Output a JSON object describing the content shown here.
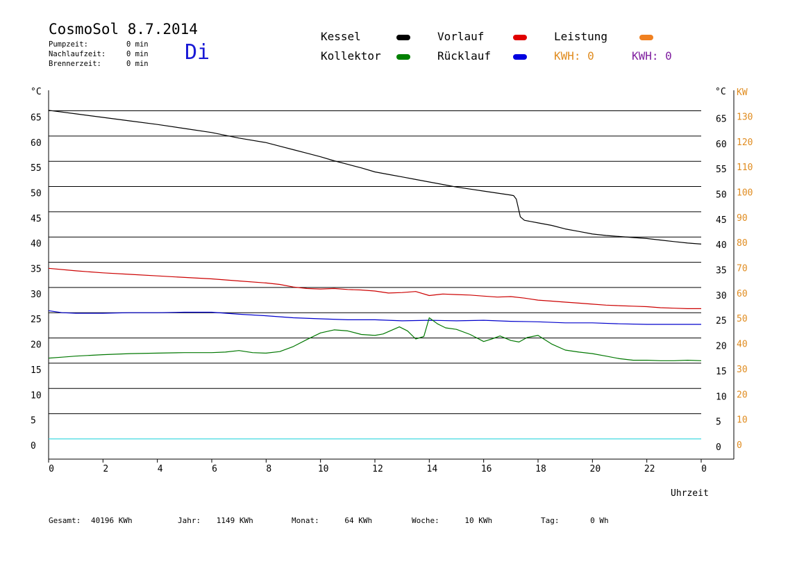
{
  "header": {
    "title": "CosmoSol 8.7.2014",
    "day": "Di",
    "stats": [
      {
        "label": "Pumpzeit:",
        "value": "0 min"
      },
      {
        "label": "Nachlaufzeit:",
        "value": "0 min"
      },
      {
        "label": "Brennerzeit:",
        "value": "0 min"
      }
    ]
  },
  "legend": {
    "kessel": {
      "label": "Kessel",
      "color": "#000000"
    },
    "kollektor": {
      "label": "Kollektor",
      "color": "#008000"
    },
    "vorlauf": {
      "label": "Vorlauf",
      "color": "#e00000"
    },
    "ruecklauf": {
      "label": "Rücklauf",
      "color": "#0000e0"
    },
    "leistung": {
      "label": "Leistung",
      "color": "#f08020"
    },
    "kwh_orange": "KWH: 0",
    "kwh_purple": "KWH: 0",
    "orange_color": "#e08c20",
    "purple_color": "#8020a0"
  },
  "footer": {
    "gesamt": {
      "label": "Gesamt:",
      "value": "40196 KWh"
    },
    "jahr": {
      "label": "Jahr:",
      "value": "1149 KWh"
    },
    "monat": {
      "label": "Monat:",
      "value": "64 KWh"
    },
    "woche": {
      "label": "Woche:",
      "value": "10 KWh"
    },
    "tag": {
      "label": "Tag:",
      "value": "0 Wh"
    }
  },
  "chart_data": {
    "type": "line",
    "xlabel": "Uhrzeit",
    "ylabel_left": "°C",
    "ylabel_right_c": "°C",
    "ylabel_right_kw": "KW",
    "xlim": [
      0,
      24
    ],
    "ylim": [
      -4,
      67
    ],
    "x_ticks": [
      "0",
      "2",
      "4",
      "6",
      "8",
      "10",
      "12",
      "14",
      "16",
      "18",
      "20",
      "22",
      "0"
    ],
    "y_ticks": [
      0,
      5,
      10,
      15,
      20,
      25,
      30,
      35,
      40,
      45,
      50,
      55,
      60,
      65
    ],
    "y2_ticks": [
      "0",
      "10",
      "20",
      "30",
      "40",
      "50",
      "60",
      "70",
      "80",
      "90",
      "100",
      "110",
      "120",
      "130"
    ],
    "grid": true,
    "series": [
      {
        "name": "Kessel",
        "color": "#000000",
        "x": [
          0,
          1,
          2,
          3,
          4,
          5,
          6,
          7,
          8,
          8.5,
          9,
          9.5,
          10,
          10.5,
          11,
          11.5,
          12,
          12.5,
          13,
          13.5,
          14,
          14.5,
          15,
          15.5,
          16,
          16.5,
          17,
          17.1,
          17.2,
          17.35,
          17.5,
          18,
          18.5,
          19,
          19.5,
          20,
          20.5,
          21,
          21.5,
          22,
          22.5,
          23,
          23.5,
          24
        ],
        "y": [
          65.1,
          64.4,
          63.7,
          63.0,
          62.3,
          61.5,
          60.7,
          59.6,
          58.7,
          58.0,
          57.3,
          56.6,
          55.9,
          55.1,
          54.4,
          53.7,
          52.9,
          52.4,
          51.9,
          51.4,
          50.9,
          50.4,
          49.9,
          49.5,
          49.1,
          48.7,
          48.3,
          48.2,
          47.5,
          44.0,
          43.3,
          42.8,
          42.3,
          41.6,
          41.1,
          40.6,
          40.3,
          40.1,
          39.9,
          39.7,
          39.4,
          39.1,
          38.8,
          38.6
        ]
      },
      {
        "name": "Vorlauf",
        "color": "#cc0000",
        "x": [
          0,
          1,
          2,
          3,
          4,
          5,
          6,
          7,
          8,
          8.5,
          9,
          9.5,
          10,
          10.5,
          11,
          11.5,
          12,
          12.5,
          13,
          13.5,
          14,
          14.5,
          15,
          15.5,
          16,
          16.5,
          17,
          17.5,
          18,
          18.5,
          19,
          19.5,
          20,
          20.5,
          21,
          21.5,
          22,
          22.5,
          23,
          23.5,
          24
        ],
        "y": [
          33.8,
          33.3,
          32.9,
          32.6,
          32.3,
          32.0,
          31.7,
          31.3,
          30.9,
          30.6,
          30.1,
          29.8,
          29.7,
          29.8,
          29.6,
          29.5,
          29.3,
          28.9,
          29.0,
          29.2,
          28.4,
          28.7,
          28.6,
          28.5,
          28.3,
          28.1,
          28.2,
          27.9,
          27.5,
          27.3,
          27.1,
          26.9,
          26.7,
          26.5,
          26.4,
          26.3,
          26.2,
          26.0,
          25.9,
          25.8,
          25.8
        ]
      },
      {
        "name": "Rücklauf",
        "color": "#0000cc",
        "x": [
          0,
          0.5,
          1,
          2,
          3,
          4,
          5,
          6,
          7,
          8,
          9,
          10,
          11,
          12,
          13,
          14,
          15,
          16,
          17,
          18,
          19,
          20,
          21,
          22,
          23,
          24
        ],
        "y": [
          25.4,
          25.0,
          24.9,
          24.9,
          25.0,
          25.0,
          25.1,
          25.1,
          24.7,
          24.4,
          24.0,
          23.8,
          23.6,
          23.6,
          23.4,
          23.5,
          23.4,
          23.5,
          23.3,
          23.2,
          23.0,
          23.0,
          22.8,
          22.7,
          22.7,
          22.7
        ]
      },
      {
        "name": "Kollektor",
        "color": "#007700",
        "x": [
          0,
          0.5,
          1,
          2,
          3,
          4,
          5,
          6,
          6.5,
          7,
          7.5,
          8,
          8.5,
          9,
          9.5,
          10,
          10.5,
          11,
          11.5,
          12,
          12.3,
          12.6,
          12.9,
          13.2,
          13.5,
          13.8,
          14.0,
          14.3,
          14.6,
          15,
          15.5,
          16,
          16.3,
          16.6,
          17,
          17.3,
          17.6,
          18,
          18.5,
          19,
          19.5,
          20,
          20.5,
          21,
          21.5,
          22,
          22.5,
          23,
          23.5,
          24
        ],
        "y": [
          16.0,
          16.2,
          16.4,
          16.7,
          16.9,
          17.0,
          17.1,
          17.1,
          17.2,
          17.5,
          17.1,
          17.0,
          17.3,
          18.3,
          19.7,
          21.0,
          21.6,
          21.4,
          20.7,
          20.5,
          20.8,
          21.5,
          22.2,
          21.4,
          19.8,
          20.3,
          24.0,
          22.8,
          22.0,
          21.7,
          20.7,
          19.3,
          19.8,
          20.4,
          19.5,
          19.2,
          20.1,
          20.5,
          18.8,
          17.6,
          17.2,
          16.9,
          16.4,
          15.9,
          15.6,
          15.6,
          15.5,
          15.5,
          15.6,
          15.5
        ]
      },
      {
        "name": "Leistung",
        "color": "#40d8e0",
        "x": [
          0,
          24
        ],
        "y": [
          0,
          0
        ]
      }
    ]
  }
}
